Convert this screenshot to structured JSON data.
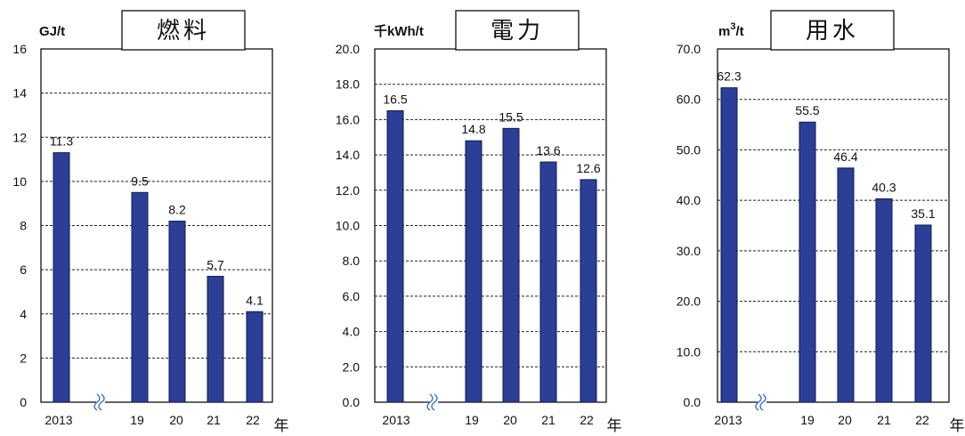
{
  "chart_data": [
    {
      "type": "bar",
      "title": "燃料",
      "ylabel": "GJ/t",
      "xlabel": "年",
      "categories": [
        "2013",
        "19",
        "20",
        "21",
        "22"
      ],
      "values": [
        11.3,
        9.5,
        8.2,
        5.7,
        4.1
      ],
      "value_labels": [
        "11.3",
        "9.5",
        "8.2",
        "5.7",
        "4.1"
      ],
      "ylim": [
        0,
        16
      ],
      "yticks": [
        "0",
        "2",
        "4",
        "6",
        "8",
        "10",
        "12",
        "14",
        "16"
      ],
      "grid": true,
      "axis_break_after": "2013",
      "bar_color": "#2b3f96"
    },
    {
      "type": "bar",
      "title": "電力",
      "ylabel": "千kWh/t",
      "xlabel": "年",
      "categories": [
        "2013",
        "19",
        "20",
        "21",
        "22"
      ],
      "values": [
        16.5,
        14.8,
        15.5,
        13.6,
        12.6
      ],
      "value_labels": [
        "16.5",
        "14.8",
        "15.5",
        "13.6",
        "12.6"
      ],
      "ylim": [
        0,
        20
      ],
      "yticks": [
        "0.0",
        "2.0",
        "4.0",
        "6.0",
        "8.0",
        "10.0",
        "12.0",
        "14.0",
        "16.0",
        "18.0",
        "20.0"
      ],
      "grid": true,
      "axis_break_after": "2013",
      "bar_color": "#2b3f96"
    },
    {
      "type": "bar",
      "title": "用水",
      "ylabel": "m3/t",
      "xlabel": "年",
      "categories": [
        "2013",
        "19",
        "20",
        "21",
        "22"
      ],
      "values": [
        62.3,
        55.5,
        46.4,
        40.3,
        35.1
      ],
      "value_labels": [
        "62.3",
        "55.5",
        "46.4",
        "40.3",
        "35.1"
      ],
      "ylim": [
        0,
        70
      ],
      "yticks": [
        "0.0",
        "10.0",
        "20.0",
        "30.0",
        "40.0",
        "50.0",
        "60.0",
        "70.0"
      ],
      "grid": true,
      "axis_break_after": "2013",
      "bar_color": "#2b3f96"
    }
  ]
}
